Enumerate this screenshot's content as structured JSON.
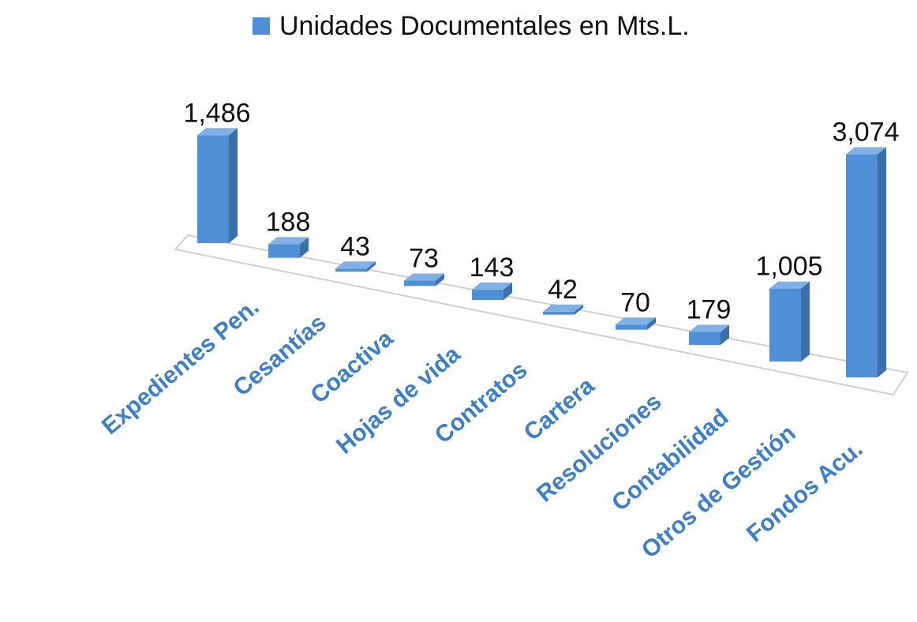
{
  "chart_data": {
    "type": "bar3d",
    "categories": [
      "Expedientes Pen.",
      "Cesantías",
      "Coactiva",
      "Hojas de vida",
      "Contratos",
      "Cartera",
      "Resoluciones",
      "Contabilidad",
      "Otros de Gestión",
      "Fondos Acu."
    ],
    "series": [
      {
        "name": "Unidades Documentales en Mts.L.",
        "color": "#4f8fd6",
        "values": [
          1486,
          188,
          43,
          73,
          143,
          42,
          70,
          179,
          1005,
          3074
        ],
        "value_labels": [
          "1,486",
          "188",
          "43",
          "73",
          "143",
          "42",
          "70",
          "179",
          "1,005",
          "3,074"
        ]
      }
    ],
    "legend": "top"
  }
}
